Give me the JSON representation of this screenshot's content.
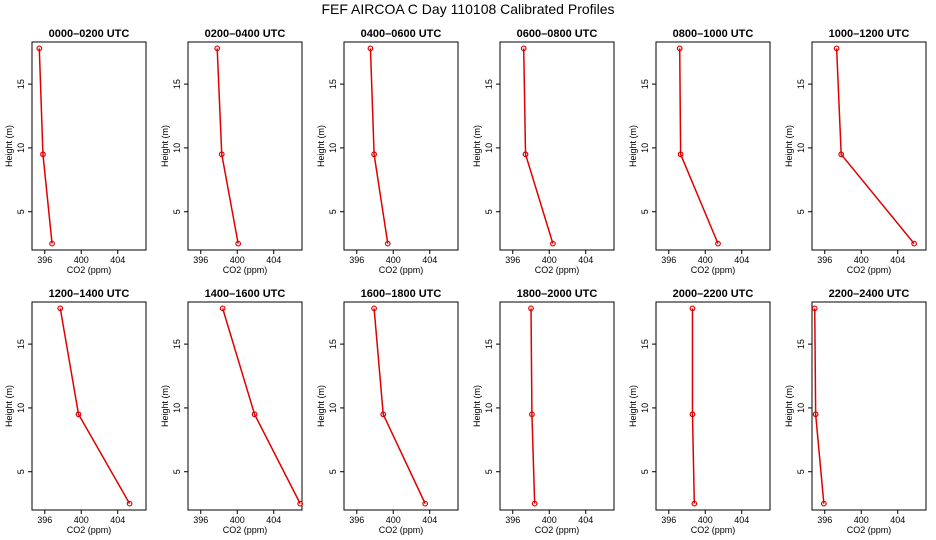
{
  "figure": {
    "title": "FEF  AIRCOA C  Day 110108  Calibrated Profiles"
  },
  "colors": {
    "series": "#e00000",
    "axis": "#000000",
    "background": "#ffffff"
  },
  "chart_data": [
    {
      "type": "line",
      "title": "0000–0200 UTC",
      "xlabel": "CO2 (ppm)",
      "ylabel": "Height (m)",
      "xlim": [
        394.6,
        407.1
      ],
      "ylim": [
        2.0,
        18.3
      ],
      "x_ticks": [
        396,
        400,
        404
      ],
      "x_tick_labels": [
        "396",
        "400",
        "404"
      ],
      "y_ticks": [
        5,
        10,
        15
      ],
      "y_tick_labels": [
        "5",
        "10",
        "15"
      ],
      "series": [
        {
          "name": "CO2",
          "x": [
            395.4,
            395.8,
            396.8
          ],
          "y": [
            17.8,
            9.5,
            2.5
          ]
        }
      ]
    },
    {
      "type": "line",
      "title": "0200–0400 UTC",
      "xlabel": "CO2 (ppm)",
      "ylabel": "Height (m)",
      "xlim": [
        394.6,
        407.1
      ],
      "ylim": [
        2.0,
        18.3
      ],
      "x_ticks": [
        396,
        400,
        404
      ],
      "x_tick_labels": [
        "396",
        "400",
        "404"
      ],
      "y_ticks": [
        5,
        10,
        15
      ],
      "y_tick_labels": [
        "5",
        "10",
        "15"
      ],
      "series": [
        {
          "name": "CO2",
          "x": [
            397.8,
            398.3,
            400.1
          ],
          "y": [
            17.8,
            9.5,
            2.5
          ]
        }
      ]
    },
    {
      "type": "line",
      "title": "0400–0600 UTC",
      "xlabel": "CO2 (ppm)",
      "ylabel": "Height (m)",
      "xlim": [
        394.6,
        407.1
      ],
      "ylim": [
        2.0,
        18.3
      ],
      "x_ticks": [
        396,
        400,
        404
      ],
      "x_tick_labels": [
        "396",
        "400",
        "404"
      ],
      "y_ticks": [
        5,
        10,
        15
      ],
      "y_tick_labels": [
        "5",
        "10",
        "15"
      ],
      "series": [
        {
          "name": "CO2",
          "x": [
            397.5,
            397.9,
            399.4
          ],
          "y": [
            17.8,
            9.5,
            2.5
          ]
        }
      ]
    },
    {
      "type": "line",
      "title": "0600–0800 UTC",
      "xlabel": "CO2 (ppm)",
      "ylabel": "Height (m)",
      "xlim": [
        394.6,
        407.1
      ],
      "ylim": [
        2.0,
        18.3
      ],
      "x_ticks": [
        396,
        400,
        404
      ],
      "x_tick_labels": [
        "396",
        "400",
        "404"
      ],
      "y_ticks": [
        5,
        10,
        15
      ],
      "y_tick_labels": [
        "5",
        "10",
        "15"
      ],
      "series": [
        {
          "name": "CO2",
          "x": [
            397.2,
            397.4,
            400.4
          ],
          "y": [
            17.8,
            9.5,
            2.5
          ]
        }
      ]
    },
    {
      "type": "line",
      "title": "0800–1000 UTC",
      "xlabel": "CO2 (ppm)",
      "ylabel": "Height (m)",
      "xlim": [
        394.6,
        407.1
      ],
      "ylim": [
        2.0,
        18.3
      ],
      "x_ticks": [
        396,
        400,
        404
      ],
      "x_tick_labels": [
        "396",
        "400",
        "404"
      ],
      "y_ticks": [
        5,
        10,
        15
      ],
      "y_tick_labels": [
        "5",
        "10",
        "15"
      ],
      "series": [
        {
          "name": "CO2",
          "x": [
            397.2,
            397.3,
            401.4
          ],
          "y": [
            17.8,
            9.5,
            2.5
          ]
        }
      ]
    },
    {
      "type": "line",
      "title": "1000–1200 UTC",
      "xlabel": "CO2 (ppm)",
      "ylabel": "Height (m)",
      "xlim": [
        394.6,
        407.1
      ],
      "ylim": [
        2.0,
        18.3
      ],
      "x_ticks": [
        396,
        400,
        404
      ],
      "x_tick_labels": [
        "396",
        "400",
        "404"
      ],
      "y_ticks": [
        5,
        10,
        15
      ],
      "y_tick_labels": [
        "5",
        "10",
        "15"
      ],
      "series": [
        {
          "name": "CO2",
          "x": [
            397.3,
            397.8,
            405.8
          ],
          "y": [
            17.8,
            9.5,
            2.5
          ]
        }
      ]
    },
    {
      "type": "line",
      "title": "1200–1400 UTC",
      "xlabel": "CO2 (ppm)",
      "ylabel": "Height (m)",
      "xlim": [
        394.6,
        407.1
      ],
      "ylim": [
        2.0,
        18.3
      ],
      "x_ticks": [
        396,
        400,
        404
      ],
      "x_tick_labels": [
        "396",
        "400",
        "404"
      ],
      "y_ticks": [
        5,
        10,
        15
      ],
      "y_tick_labels": [
        "5",
        "10",
        "15"
      ],
      "series": [
        {
          "name": "CO2",
          "x": [
            397.7,
            399.7,
            405.3
          ],
          "y": [
            17.8,
            9.5,
            2.5
          ]
        }
      ]
    },
    {
      "type": "line",
      "title": "1400–1600 UTC",
      "xlabel": "CO2 (ppm)",
      "ylabel": "Height (m)",
      "xlim": [
        394.6,
        407.1
      ],
      "ylim": [
        2.0,
        18.3
      ],
      "x_ticks": [
        396,
        400,
        404
      ],
      "x_tick_labels": [
        "396",
        "400",
        "404"
      ],
      "y_ticks": [
        5,
        10,
        15
      ],
      "y_tick_labels": [
        "5",
        "10",
        "15"
      ],
      "series": [
        {
          "name": "CO2",
          "x": [
            398.4,
            401.9,
            406.9
          ],
          "y": [
            17.8,
            9.5,
            2.5
          ]
        }
      ]
    },
    {
      "type": "line",
      "title": "1600–1800 UTC",
      "xlabel": "CO2 (ppm)",
      "ylabel": "Height (m)",
      "xlim": [
        394.6,
        407.1
      ],
      "ylim": [
        2.0,
        18.3
      ],
      "x_ticks": [
        396,
        400,
        404
      ],
      "x_tick_labels": [
        "396",
        "400",
        "404"
      ],
      "y_ticks": [
        5,
        10,
        15
      ],
      "y_tick_labels": [
        "5",
        "10",
        "15"
      ],
      "series": [
        {
          "name": "CO2",
          "x": [
            397.9,
            398.9,
            403.5
          ],
          "y": [
            17.8,
            9.5,
            2.5
          ]
        }
      ]
    },
    {
      "type": "line",
      "title": "1800–2000 UTC",
      "xlabel": "CO2 (ppm)",
      "ylabel": "Height (m)",
      "xlim": [
        394.6,
        407.1
      ],
      "ylim": [
        2.0,
        18.3
      ],
      "x_ticks": [
        396,
        400,
        404
      ],
      "x_tick_labels": [
        "396",
        "400",
        "404"
      ],
      "y_ticks": [
        5,
        10,
        15
      ],
      "y_tick_labels": [
        "5",
        "10",
        "15"
      ],
      "series": [
        {
          "name": "CO2",
          "x": [
            398.0,
            398.1,
            398.4
          ],
          "y": [
            17.8,
            9.5,
            2.5
          ]
        }
      ]
    },
    {
      "type": "line",
      "title": "2000–2200 UTC",
      "xlabel": "CO2 (ppm)",
      "ylabel": "Height (m)",
      "xlim": [
        394.6,
        407.1
      ],
      "ylim": [
        2.0,
        18.3
      ],
      "x_ticks": [
        396,
        400,
        404
      ],
      "x_tick_labels": [
        "396",
        "400",
        "404"
      ],
      "y_ticks": [
        5,
        10,
        15
      ],
      "y_tick_labels": [
        "5",
        "10",
        "15"
      ],
      "series": [
        {
          "name": "CO2",
          "x": [
            398.6,
            398.6,
            398.8
          ],
          "y": [
            17.8,
            9.5,
            2.5
          ]
        }
      ]
    },
    {
      "type": "line",
      "title": "2200–2400 UTC",
      "xlabel": "CO2 (ppm)",
      "ylabel": "Height (m)",
      "xlim": [
        394.6,
        407.1
      ],
      "ylim": [
        2.0,
        18.3
      ],
      "x_ticks": [
        396,
        400,
        404
      ],
      "x_tick_labels": [
        "396",
        "400",
        "404"
      ],
      "y_ticks": [
        5,
        10,
        15
      ],
      "y_tick_labels": [
        "5",
        "10",
        "15"
      ],
      "series": [
        {
          "name": "CO2",
          "x": [
            394.9,
            395.0,
            395.9
          ],
          "y": [
            17.8,
            9.5,
            2.5
          ]
        }
      ]
    }
  ]
}
